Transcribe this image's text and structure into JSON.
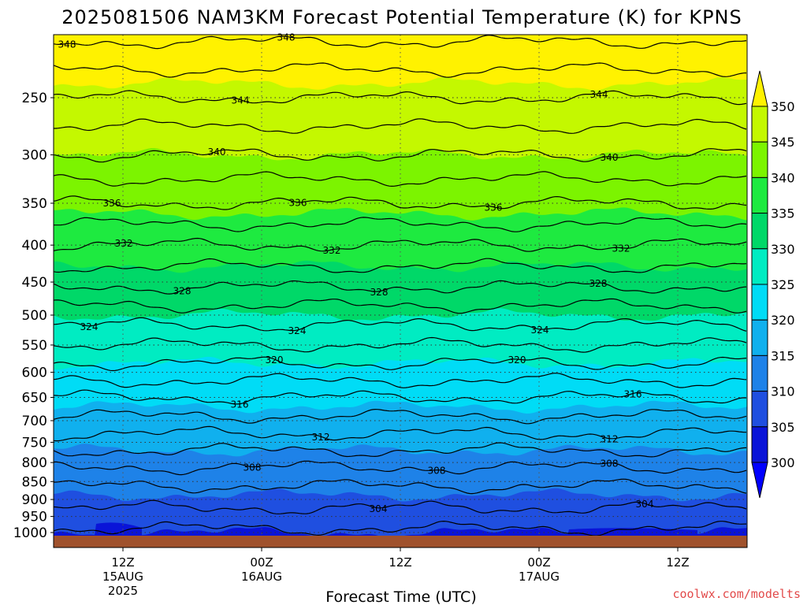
{
  "title": "2025081506 NAM3KM Forecast Potential Temperature (K) for KPNS",
  "xlabel": "Forecast Time (UTC)",
  "credit": "coolwx.com/modelts",
  "colors": {
    "band_300": "#0a14d8",
    "band_305": "#1f4fe0",
    "band_310": "#1e82e8",
    "band_315": "#10b0ee",
    "band_320": "#00dcf6",
    "band_325": "#00ecc2",
    "band_330": "#00d868",
    "band_335": "#1eea40",
    "band_340": "#7cf400",
    "band_345": "#c4f800",
    "band_350": "#fff200",
    "ground": "#a0522d"
  },
  "chart_data": {
    "type": "heatmap",
    "title": "2025081506 NAM3KM Forecast Potential Temperature (K) for KPNS",
    "xlabel": "Forecast Time (UTC)",
    "ylabel": "",
    "x_start_utc": "2025-08-15 06Z",
    "x_end_utc": "2025-08-17 18Z",
    "x_ticks": [
      {
        "hour": 6,
        "line1": "12Z",
        "line2": "15AUG",
        "line3": "2025"
      },
      {
        "hour": 18,
        "line1": "00Z",
        "line2": "16AUG",
        "line3": ""
      },
      {
        "hour": 30,
        "line1": "12Z",
        "line2": "",
        "line3": ""
      },
      {
        "hour": 42,
        "line1": "00Z",
        "line2": "17AUG",
        "line3": ""
      },
      {
        "hour": 54,
        "line1": "12Z",
        "line2": "",
        "line3": ""
      }
    ],
    "y_ticks": [
      "250",
      "300",
      "350",
      "400",
      "450",
      "500",
      "550",
      "600",
      "650",
      "700",
      "750",
      "800",
      "850",
      "900",
      "950",
      "1000"
    ],
    "ylim": [
      200,
      1015
    ],
    "y_scale": "log pressure (hPa, inverted)",
    "colorbar": {
      "labels": [
        "350",
        "345",
        "340",
        "335",
        "330",
        "325",
        "320",
        "315",
        "310",
        "305",
        "300"
      ],
      "levels": [
        300,
        305,
        310,
        315,
        320,
        325,
        330,
        335,
        340,
        345,
        350
      ]
    },
    "contour_labels": [
      "348",
      "348",
      "344",
      "344",
      "340",
      "340",
      "336",
      "336",
      "336",
      "332",
      "332",
      "332",
      "328",
      "328",
      "328",
      "324",
      "324",
      "324",
      "320",
      "320",
      "316",
      "316",
      "312",
      "312",
      "308",
      "308",
      "308",
      "304",
      "304"
    ],
    "profile": [
      {
        "p": 1000,
        "theta": 301.5
      },
      {
        "p": 950,
        "theta": 303.5
      },
      {
        "p": 900,
        "theta": 304.5
      },
      {
        "p": 850,
        "theta": 306.5
      },
      {
        "p": 800,
        "theta": 308.5
      },
      {
        "p": 750,
        "theta": 311
      },
      {
        "p": 700,
        "theta": 313.5
      },
      {
        "p": 650,
        "theta": 316
      },
      {
        "p": 600,
        "theta": 319
      },
      {
        "p": 550,
        "theta": 322
      },
      {
        "p": 500,
        "theta": 325
      },
      {
        "p": 450,
        "theta": 328.5
      },
      {
        "p": 400,
        "theta": 332
      },
      {
        "p": 350,
        "theta": 336
      },
      {
        "p": 300,
        "theta": 340
      },
      {
        "p": 250,
        "theta": 344
      },
      {
        "p": 200,
        "theta": 349
      }
    ]
  }
}
